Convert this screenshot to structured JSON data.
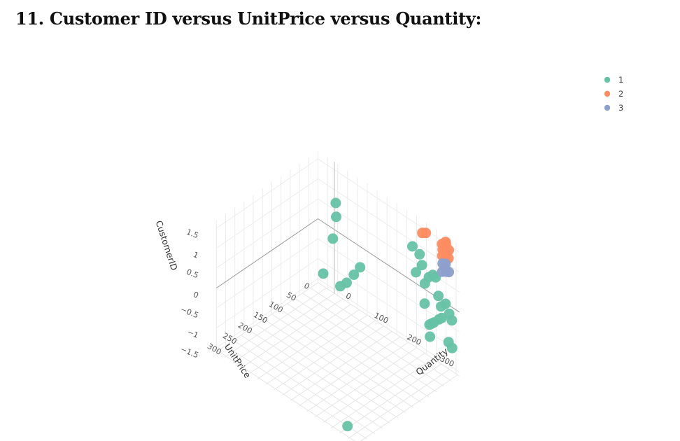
{
  "page": {
    "title": "11.  Customer ID versus UnitPrice versus Quantity:"
  },
  "chart_data": {
    "type": "scatter",
    "dimensions": 3,
    "axes": {
      "z": {
        "title": "CustomerID",
        "ticks": [
          "1.5",
          "1",
          "0.5",
          "0",
          "−0.5",
          "−1",
          "−1.5"
        ]
      },
      "x": {
        "title": "UnitPrice",
        "ticks": [
          "0",
          "50",
          "100",
          "150",
          "200",
          "250",
          "300"
        ]
      },
      "y": {
        "title": "Quantity",
        "ticks": [
          "0",
          "100",
          "200",
          "300"
        ]
      }
    },
    "legend": {
      "position": "top-right"
    },
    "grid": true,
    "series": [
      {
        "name": "1",
        "color": "#66c2a5",
        "points": [
          {
            "unit_price": 2,
            "quantity": 310,
            "customer_id": 0.5
          },
          {
            "unit_price": 1,
            "quantity": 300,
            "customer_id": 0.5
          },
          {
            "unit_price": 3,
            "quantity": 290,
            "customer_id": 0.4
          },
          {
            "unit_price": 2,
            "quantity": 250,
            "customer_id": 0.3
          },
          {
            "unit_price": 5,
            "quantity": 280,
            "customer_id": 0.2
          },
          {
            "unit_price": 4,
            "quantity": 320,
            "customer_id": 0.1
          },
          {
            "unit_price": 2,
            "quantity": 340,
            "customer_id": 0.0
          },
          {
            "unit_price": 6,
            "quantity": 330,
            "customer_id": -0.1
          },
          {
            "unit_price": 1,
            "quantity": 350,
            "customer_id": -0.2
          },
          {
            "unit_price": 3,
            "quantity": 360,
            "customer_id": -0.3
          },
          {
            "unit_price": 4,
            "quantity": 330,
            "customer_id": -0.4
          },
          {
            "unit_price": 2,
            "quantity": 320,
            "customer_id": -0.5
          },
          {
            "unit_price": 8,
            "quantity": 310,
            "customer_id": -0.6
          },
          {
            "unit_price": 5,
            "quantity": 300,
            "customer_id": -0.7
          },
          {
            "unit_price": 1,
            "quantity": 290,
            "customer_id": -0.8
          },
          {
            "unit_price": 3,
            "quantity": 350,
            "customer_id": -0.9
          },
          {
            "unit_price": 2,
            "quantity": 360,
            "customer_id": -1.0
          },
          {
            "unit_price": 10,
            "quantity": 300,
            "customer_id": -1.0
          },
          {
            "unit_price": 6,
            "quantity": 280,
            "customer_id": -0.3
          },
          {
            "unit_price": 4,
            "quantity": 270,
            "customer_id": 0.6
          },
          {
            "unit_price": 1,
            "quantity": 260,
            "customer_id": 0.8
          },
          {
            "unit_price": 3,
            "quantity": 240,
            "customer_id": 0.9
          },
          {
            "unit_price": 2,
            "quantity": 80,
            "customer_id": -0.5
          },
          {
            "unit_price": 1,
            "quantity": 60,
            "customer_id": -0.8
          },
          {
            "unit_price": 3,
            "quantity": 40,
            "customer_id": -1.1
          },
          {
            "unit_price": 2,
            "quantity": 20,
            "customer_id": -1.3
          },
          {
            "unit_price": 5,
            "quantity": 10,
            "customer_id": 0.4
          },
          {
            "unit_price": 1,
            "quantity": 5,
            "customer_id": 0.7
          },
          {
            "unit_price": 250,
            "quantity": 200,
            "customer_id": 1.3
          },
          {
            "unit_price": 310,
            "quantity": 330,
            "customer_id": -1.5
          },
          {
            "unit_price": 5,
            "quantity": 0,
            "customer_id": -0.2
          }
        ]
      },
      {
        "name": "2",
        "color": "#fc8d62",
        "points": [
          {
            "unit_price": 2,
            "quantity": 340,
            "customer_id": 1.55
          },
          {
            "unit_price": 1,
            "quantity": 340,
            "customer_id": 1.5
          },
          {
            "unit_price": 3,
            "quantity": 330,
            "customer_id": 1.45
          },
          {
            "unit_price": 2,
            "quantity": 350,
            "customer_id": 1.4
          },
          {
            "unit_price": 4,
            "quantity": 340,
            "customer_id": 1.35
          },
          {
            "unit_price": 1,
            "quantity": 330,
            "customer_id": 1.3
          },
          {
            "unit_price": 2,
            "quantity": 340,
            "customer_id": 1.25
          },
          {
            "unit_price": 3,
            "quantity": 350,
            "customer_id": 1.2
          },
          {
            "unit_price": 2,
            "quantity": 330,
            "customer_id": 1.15
          },
          {
            "unit_price": 1,
            "quantity": 340,
            "customer_id": 1.1
          },
          {
            "unit_price": 2,
            "quantity": 280,
            "customer_id": 1.45
          },
          {
            "unit_price": 3,
            "quantity": 270,
            "customer_id": 1.4
          }
        ]
      },
      {
        "name": "3",
        "color": "#8da0cb",
        "points": [
          {
            "unit_price": 2,
            "quantity": 340,
            "customer_id": 1.0
          },
          {
            "unit_price": 1,
            "quantity": 330,
            "customer_id": 0.95
          },
          {
            "unit_price": 3,
            "quantity": 340,
            "customer_id": 0.9
          },
          {
            "unit_price": 2,
            "quantity": 350,
            "customer_id": 0.85
          },
          {
            "unit_price": 1,
            "quantity": 340,
            "customer_id": 0.8
          },
          {
            "unit_price": 2,
            "quantity": 330,
            "customer_id": 0.75
          }
        ]
      }
    ]
  }
}
